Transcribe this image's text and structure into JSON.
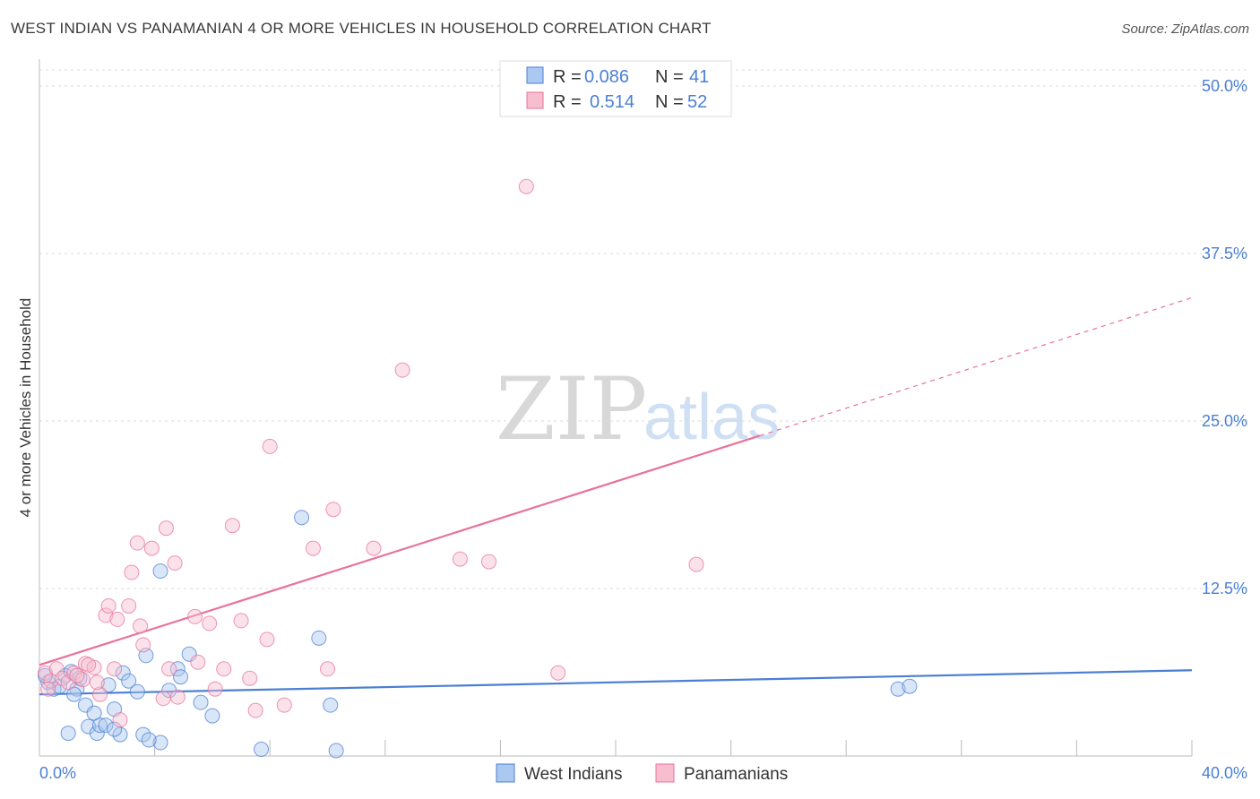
{
  "title": "WEST INDIAN VS PANAMANIAN 4 OR MORE VEHICLES IN HOUSEHOLD CORRELATION CHART",
  "source": "Source: ZipAtlas.com",
  "watermark": {
    "zip": "ZIP",
    "atlas": "atlas"
  },
  "colors": {
    "blue": "#4a7fd4",
    "blue_fill": "#aac8f0",
    "pink": "#e8739a",
    "pink_fill": "#f7bed0",
    "grid": "#d8d8d8",
    "axis": "#bbbbbb"
  },
  "legend": {
    "rows": [
      {
        "r_label": "R = ",
        "r_value": "0.086",
        "n_label": "N = ",
        "n_value": "41",
        "color": "blue"
      },
      {
        "r_label": "R = ",
        "r_value": "0.514",
        "n_label": "N = ",
        "n_value": "52",
        "color": "pink"
      }
    ]
  },
  "chart_data": {
    "type": "scatter",
    "title": "WEST INDIAN VS PANAMANIAN 4 OR MORE VEHICLES IN HOUSEHOLD CORRELATION CHART",
    "xlabel": "",
    "ylabel": "4 or more Vehicles in Household",
    "xlim": [
      0,
      40
    ],
    "ylim": [
      0,
      50
    ],
    "x_tick_labels": [
      "0.0%",
      "40.0%"
    ],
    "y_ticks": [
      12.5,
      25.0,
      37.5,
      50.0
    ],
    "y_tick_labels": [
      "12.5%",
      "25.0%",
      "37.5%",
      "50.0%"
    ],
    "grid": true,
    "series": [
      {
        "name": "West Indians",
        "color": "blue",
        "points": [
          [
            0.3,
            5.5
          ],
          [
            0.5,
            5.0
          ],
          [
            0.7,
            5.2
          ],
          [
            0.9,
            6.0
          ],
          [
            1.0,
            1.7
          ],
          [
            1.1,
            6.3
          ],
          [
            1.3,
            5.0
          ],
          [
            1.4,
            5.8
          ],
          [
            1.6,
            3.8
          ],
          [
            1.7,
            2.2
          ],
          [
            1.9,
            3.2
          ],
          [
            2.0,
            1.7
          ],
          [
            2.1,
            2.3
          ],
          [
            2.3,
            2.3
          ],
          [
            2.4,
            5.3
          ],
          [
            2.6,
            3.5
          ],
          [
            2.8,
            1.6
          ],
          [
            2.9,
            6.2
          ],
          [
            3.1,
            5.6
          ],
          [
            3.4,
            4.8
          ],
          [
            3.6,
            1.6
          ],
          [
            3.7,
            7.5
          ],
          [
            4.2,
            13.8
          ],
          [
            4.2,
            1.0
          ],
          [
            4.5,
            4.9
          ],
          [
            4.8,
            6.5
          ],
          [
            4.9,
            5.9
          ],
          [
            5.2,
            7.6
          ],
          [
            5.6,
            4.0
          ],
          [
            6.0,
            3.0
          ],
          [
            7.7,
            0.5
          ],
          [
            9.1,
            17.8
          ],
          [
            9.7,
            8.8
          ],
          [
            10.1,
            3.8
          ],
          [
            10.3,
            0.4
          ],
          [
            29.8,
            5.0
          ],
          [
            30.2,
            5.2
          ],
          [
            0.2,
            6.0
          ],
          [
            1.2,
            4.6
          ],
          [
            2.6,
            2.0
          ],
          [
            3.8,
            1.2
          ]
        ],
        "trend": {
          "x": [
            0,
            40
          ],
          "y": [
            4.6,
            6.4
          ],
          "style": "solid"
        }
      },
      {
        "name": "Panamanians",
        "color": "pink",
        "points": [
          [
            0.2,
            6.2
          ],
          [
            0.4,
            5.6
          ],
          [
            0.6,
            6.5
          ],
          [
            0.8,
            5.8
          ],
          [
            1.0,
            5.5
          ],
          [
            1.2,
            6.2
          ],
          [
            1.5,
            5.7
          ],
          [
            1.6,
            6.9
          ],
          [
            1.9,
            6.6
          ],
          [
            2.1,
            4.6
          ],
          [
            2.3,
            10.5
          ],
          [
            2.4,
            11.2
          ],
          [
            2.6,
            6.5
          ],
          [
            2.7,
            10.2
          ],
          [
            2.8,
            2.7
          ],
          [
            3.1,
            11.2
          ],
          [
            3.2,
            13.7
          ],
          [
            3.4,
            15.9
          ],
          [
            3.5,
            9.7
          ],
          [
            3.6,
            8.3
          ],
          [
            3.9,
            15.5
          ],
          [
            4.3,
            4.3
          ],
          [
            4.4,
            17.0
          ],
          [
            4.5,
            6.5
          ],
          [
            4.7,
            14.4
          ],
          [
            4.8,
            4.4
          ],
          [
            5.4,
            10.4
          ],
          [
            5.5,
            7.0
          ],
          [
            5.9,
            9.9
          ],
          [
            6.1,
            5.0
          ],
          [
            6.4,
            6.5
          ],
          [
            6.7,
            17.2
          ],
          [
            7.0,
            10.1
          ],
          [
            7.3,
            5.8
          ],
          [
            7.5,
            3.4
          ],
          [
            7.9,
            8.7
          ],
          [
            8.0,
            23.1
          ],
          [
            8.5,
            3.8
          ],
          [
            9.5,
            15.5
          ],
          [
            10.0,
            6.5
          ],
          [
            10.2,
            18.4
          ],
          [
            11.6,
            15.5
          ],
          [
            12.6,
            28.8
          ],
          [
            14.6,
            14.7
          ],
          [
            15.6,
            14.5
          ],
          [
            16.9,
            42.5
          ],
          [
            18.0,
            6.2
          ],
          [
            22.8,
            14.3
          ],
          [
            0.3,
            5.0
          ],
          [
            1.3,
            6.0
          ],
          [
            2.0,
            5.5
          ],
          [
            1.7,
            6.8
          ]
        ],
        "trend": {
          "x": [
            0,
            25
          ],
          "y": [
            6.8,
            23.9
          ],
          "style": "solid"
        },
        "trend_extension": {
          "x": [
            25,
            40
          ],
          "y": [
            23.9,
            34.2
          ],
          "style": "dashed"
        }
      }
    ]
  }
}
